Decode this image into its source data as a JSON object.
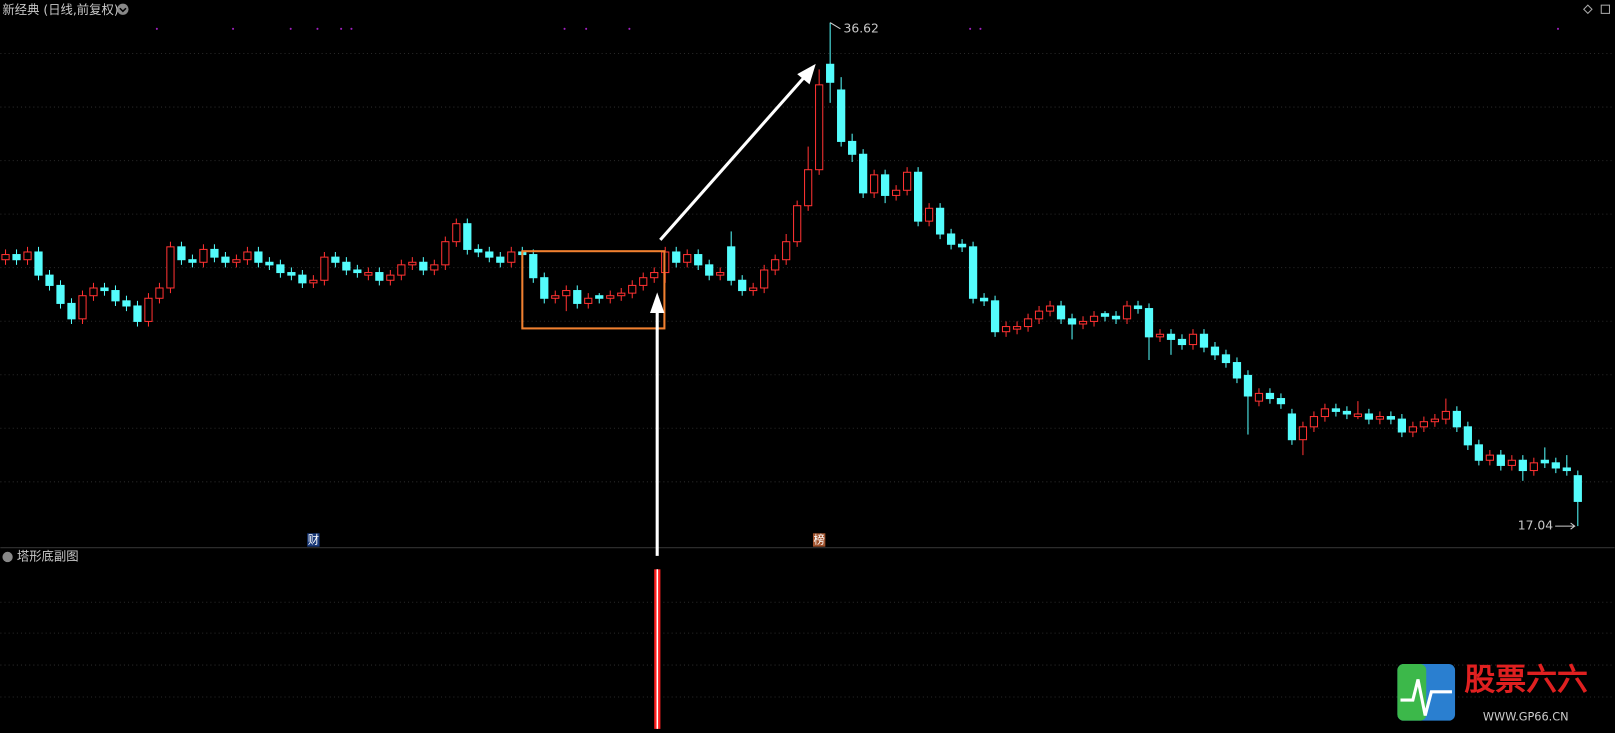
{
  "chart_data": {
    "type": "candlestick",
    "title": "新经典 (日线,前复权)",
    "subtitle": "塔形底副图",
    "ylim": [
      16.28,
      37.5
    ],
    "grid": true,
    "up_color": "#ff3232",
    "down_color": "#54fcfc",
    "max_price": 36.62,
    "min_price": 17.04,
    "event_markers": [
      {
        "index": 28,
        "label": "财"
      },
      {
        "index": 74,
        "label": "榜"
      }
    ],
    "ohlc": [
      [
        27.4,
        27.8,
        27.2,
        27.6
      ],
      [
        27.6,
        27.8,
        27.2,
        27.4
      ],
      [
        27.4,
        27.9,
        27.2,
        27.7
      ],
      [
        27.7,
        27.9,
        26.6,
        26.8
      ],
      [
        26.8,
        27.0,
        26.2,
        26.4
      ],
      [
        26.4,
        26.6,
        25.5,
        25.7
      ],
      [
        25.7,
        25.9,
        24.9,
        25.1
      ],
      [
        25.1,
        26.2,
        24.9,
        26.0
      ],
      [
        26.0,
        26.5,
        25.8,
        26.3
      ],
      [
        26.3,
        26.5,
        26.0,
        26.2
      ],
      [
        26.2,
        26.4,
        25.6,
        25.8
      ],
      [
        25.8,
        26.0,
        25.4,
        25.6
      ],
      [
        25.6,
        25.8,
        24.8,
        25.0
      ],
      [
        25.0,
        26.1,
        24.8,
        25.9
      ],
      [
        25.9,
        26.5,
        25.7,
        26.3
      ],
      [
        26.3,
        28.1,
        26.1,
        27.9
      ],
      [
        27.9,
        28.1,
        27.2,
        27.4
      ],
      [
        27.4,
        27.6,
        27.1,
        27.3
      ],
      [
        27.3,
        28.0,
        27.1,
        27.8
      ],
      [
        27.8,
        28.0,
        27.3,
        27.5
      ],
      [
        27.5,
        27.7,
        27.1,
        27.3
      ],
      [
        27.3,
        27.6,
        27.1,
        27.4
      ],
      [
        27.4,
        27.9,
        27.2,
        27.7
      ],
      [
        27.7,
        27.9,
        27.1,
        27.3
      ],
      [
        27.3,
        27.5,
        27.0,
        27.2
      ],
      [
        27.2,
        27.4,
        26.7,
        26.9
      ],
      [
        26.9,
        27.1,
        26.6,
        26.8
      ],
      [
        26.8,
        27.0,
        26.3,
        26.5
      ],
      [
        26.5,
        26.8,
        26.3,
        26.6
      ],
      [
        26.6,
        27.7,
        26.4,
        27.5
      ],
      [
        27.5,
        27.7,
        27.1,
        27.3
      ],
      [
        27.3,
        27.5,
        26.8,
        27.0
      ],
      [
        27.0,
        27.2,
        26.7,
        26.9
      ],
      [
        26.8,
        27.1,
        26.6,
        26.9
      ],
      [
        26.9,
        27.1,
        26.4,
        26.6
      ],
      [
        26.6,
        27.0,
        26.4,
        26.8
      ],
      [
        26.8,
        27.4,
        26.6,
        27.2
      ],
      [
        27.2,
        27.5,
        27.0,
        27.3
      ],
      [
        27.3,
        27.5,
        26.8,
        27.0
      ],
      [
        27.0,
        27.4,
        26.8,
        27.2
      ],
      [
        27.2,
        28.3,
        27.0,
        28.1
      ],
      [
        28.1,
        29.0,
        27.9,
        28.8
      ],
      [
        28.8,
        29.0,
        27.6,
        27.8
      ],
      [
        27.8,
        28.0,
        27.5,
        27.7
      ],
      [
        27.7,
        27.9,
        27.3,
        27.5
      ],
      [
        27.5,
        27.7,
        27.1,
        27.3
      ],
      [
        27.3,
        27.9,
        27.1,
        27.7
      ],
      [
        27.7,
        27.9,
        27.4,
        27.6
      ],
      [
        27.6,
        27.8,
        26.5,
        26.7
      ],
      [
        26.7,
        26.9,
        25.7,
        25.9
      ],
      [
        25.9,
        26.2,
        25.7,
        26.0
      ],
      [
        26.0,
        26.4,
        25.4,
        26.2
      ],
      [
        26.2,
        26.4,
        25.5,
        25.7
      ],
      [
        25.7,
        26.1,
        25.5,
        25.9
      ],
      [
        26.0,
        26.1,
        25.7,
        25.9
      ],
      [
        25.9,
        26.2,
        25.7,
        26.0
      ],
      [
        26.0,
        26.3,
        25.8,
        26.1
      ],
      [
        26.1,
        26.6,
        25.9,
        26.4
      ],
      [
        26.4,
        26.9,
        26.2,
        26.7
      ],
      [
        26.7,
        27.1,
        26.5,
        26.9
      ],
      [
        26.9,
        27.9,
        26.5,
        27.7
      ],
      [
        27.7,
        27.9,
        27.1,
        27.3
      ],
      [
        27.3,
        27.8,
        27.1,
        27.6
      ],
      [
        27.6,
        27.8,
        27.0,
        27.2
      ],
      [
        27.2,
        27.4,
        26.6,
        26.8
      ],
      [
        26.8,
        27.1,
        26.6,
        26.9
      ],
      [
        27.9,
        28.5,
        26.4,
        26.6
      ],
      [
        26.6,
        26.8,
        26.0,
        26.2
      ],
      [
        26.2,
        26.5,
        26.0,
        26.3
      ],
      [
        26.3,
        27.2,
        26.1,
        27.0
      ],
      [
        27.0,
        27.6,
        26.8,
        27.4
      ],
      [
        27.4,
        28.4,
        27.2,
        28.1
      ],
      [
        28.1,
        29.7,
        27.9,
        29.5
      ],
      [
        29.5,
        31.8,
        29.3,
        30.9
      ],
      [
        30.9,
        34.8,
        30.7,
        34.2
      ],
      [
        35.0,
        36.62,
        33.5,
        34.3
      ],
      [
        34.0,
        34.5,
        31.8,
        32.0
      ],
      [
        32.0,
        32.3,
        31.2,
        31.5
      ],
      [
        31.5,
        31.7,
        29.8,
        30.0
      ],
      [
        30.0,
        30.9,
        29.8,
        30.7
      ],
      [
        30.7,
        30.9,
        29.6,
        29.9
      ],
      [
        29.9,
        30.3,
        29.7,
        30.1
      ],
      [
        30.1,
        31.0,
        29.9,
        30.8
      ],
      [
        30.8,
        31.0,
        28.7,
        28.9
      ],
      [
        28.9,
        29.6,
        28.7,
        29.4
      ],
      [
        29.4,
        29.6,
        28.2,
        28.4
      ],
      [
        28.4,
        28.6,
        27.8,
        28.0
      ],
      [
        28.0,
        28.2,
        27.7,
        27.9
      ],
      [
        27.9,
        28.1,
        25.7,
        25.9
      ],
      [
        25.9,
        26.1,
        25.6,
        25.8
      ],
      [
        25.8,
        26.0,
        24.4,
        24.6
      ],
      [
        24.6,
        25.0,
        24.4,
        24.8
      ],
      [
        24.7,
        25.0,
        24.5,
        24.8
      ],
      [
        24.8,
        25.3,
        24.6,
        25.1
      ],
      [
        25.1,
        25.6,
        24.9,
        25.4
      ],
      [
        25.4,
        25.8,
        25.2,
        25.6
      ],
      [
        25.6,
        25.8,
        24.9,
        25.1
      ],
      [
        25.1,
        25.3,
        24.3,
        24.9
      ],
      [
        24.9,
        25.2,
        24.7,
        25.0
      ],
      [
        25.0,
        25.4,
        24.8,
        25.2
      ],
      [
        25.3,
        25.4,
        25.0,
        25.2
      ],
      [
        25.2,
        25.4,
        24.9,
        25.1
      ],
      [
        25.1,
        25.8,
        24.9,
        25.6
      ],
      [
        25.6,
        25.8,
        25.3,
        25.5
      ],
      [
        25.5,
        25.7,
        23.5,
        24.4
      ],
      [
        24.4,
        24.7,
        24.2,
        24.5
      ],
      [
        24.5,
        24.7,
        23.7,
        24.3
      ],
      [
        24.3,
        24.5,
        23.9,
        24.1
      ],
      [
        24.1,
        24.7,
        23.9,
        24.5
      ],
      [
        24.5,
        24.7,
        23.8,
        24.0
      ],
      [
        24.0,
        24.2,
        23.5,
        23.7
      ],
      [
        23.7,
        23.9,
        23.2,
        23.4
      ],
      [
        23.4,
        23.6,
        22.6,
        22.8
      ],
      [
        22.9,
        23.1,
        20.6,
        22.1
      ],
      [
        21.9,
        22.4,
        21.7,
        22.2
      ],
      [
        22.2,
        22.4,
        21.8,
        22.0
      ],
      [
        22.0,
        22.2,
        21.6,
        21.8
      ],
      [
        21.4,
        21.6,
        20.2,
        20.4
      ],
      [
        20.4,
        21.1,
        19.8,
        20.9
      ],
      [
        20.9,
        21.5,
        20.7,
        21.3
      ],
      [
        21.3,
        21.8,
        21.1,
        21.6
      ],
      [
        21.6,
        21.8,
        21.3,
        21.5
      ],
      [
        21.5,
        21.7,
        21.2,
        21.4
      ],
      [
        21.3,
        21.9,
        21.2,
        21.4
      ],
      [
        21.4,
        21.6,
        21.0,
        21.2
      ],
      [
        21.2,
        21.5,
        21.0,
        21.3
      ],
      [
        21.3,
        21.5,
        21.0,
        21.2
      ],
      [
        21.2,
        21.4,
        20.5,
        20.7
      ],
      [
        20.7,
        21.1,
        20.5,
        20.9
      ],
      [
        20.9,
        21.3,
        20.7,
        21.1
      ],
      [
        21.1,
        21.4,
        20.9,
        21.2
      ],
      [
        21.2,
        22.0,
        21.0,
        21.5
      ],
      [
        21.5,
        21.7,
        20.7,
        20.9
      ],
      [
        20.9,
        21.1,
        20.0,
        20.2
      ],
      [
        20.2,
        20.4,
        19.4,
        19.6
      ],
      [
        19.6,
        20.0,
        19.4,
        19.8
      ],
      [
        19.8,
        20.0,
        19.2,
        19.4
      ],
      [
        19.4,
        19.8,
        19.2,
        19.6
      ],
      [
        19.6,
        19.8,
        18.8,
        19.2
      ],
      [
        19.2,
        19.7,
        19.0,
        19.5
      ],
      [
        19.6,
        20.1,
        19.3,
        19.5
      ],
      [
        19.5,
        19.7,
        19.1,
        19.3
      ],
      [
        19.3,
        19.8,
        19.0,
        19.2
      ],
      [
        19.0,
        19.2,
        17.04,
        18.0
      ]
    ],
    "signal_ylim": [
      0,
      1
    ],
    "signal_bars": [
      {
        "index": 59,
        "value": 1
      }
    ],
    "watermark": {
      "title": "股票六六",
      "url": "WWW.GP66.CN"
    }
  }
}
